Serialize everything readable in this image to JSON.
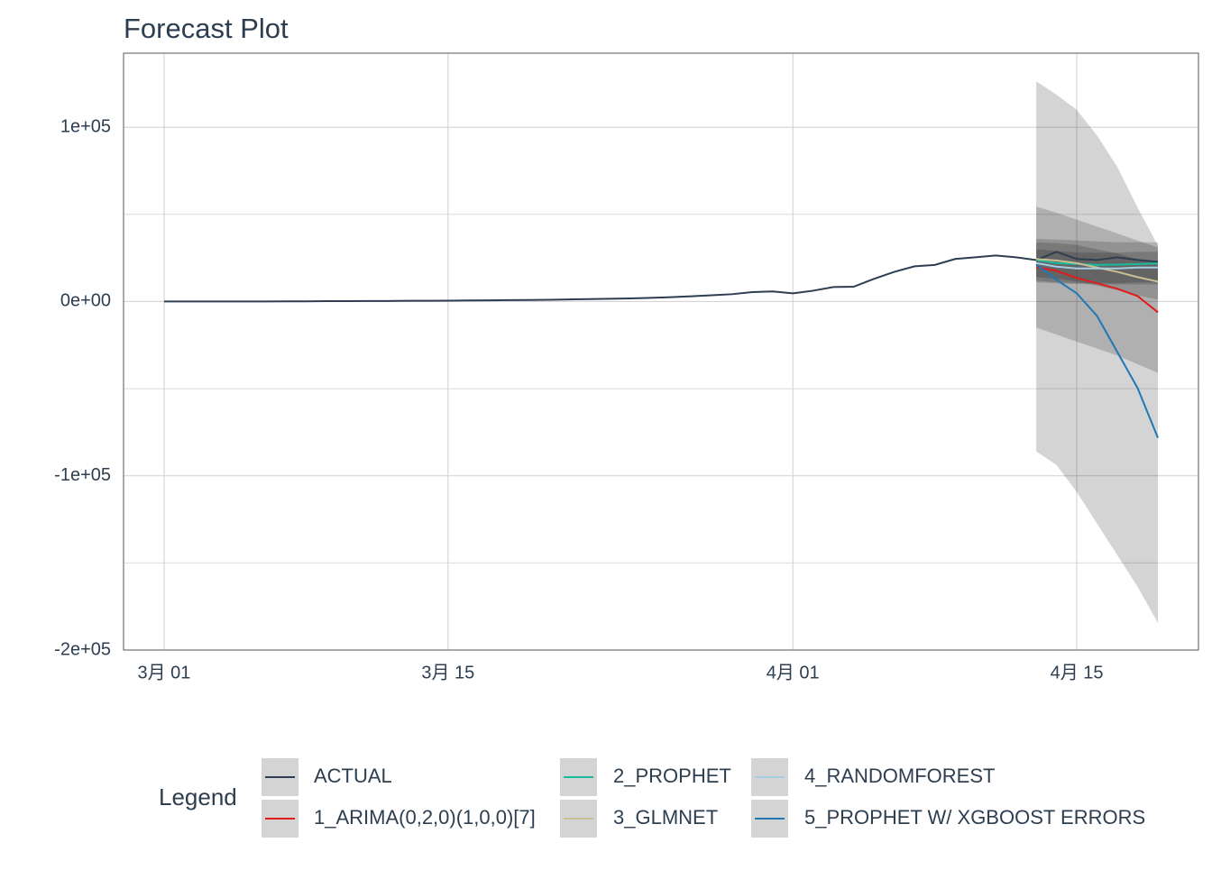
{
  "chart_data": {
    "type": "line",
    "title": "Forecast Plot",
    "legend_title": "Legend",
    "x": [
      "03-01",
      "03-02",
      "03-03",
      "03-04",
      "03-05",
      "03-06",
      "03-07",
      "03-08",
      "03-09",
      "03-10",
      "03-11",
      "03-12",
      "03-13",
      "03-14",
      "03-15",
      "03-16",
      "03-17",
      "03-18",
      "03-19",
      "03-20",
      "03-21",
      "03-22",
      "03-23",
      "03-24",
      "03-25",
      "03-26",
      "03-27",
      "03-28",
      "03-29",
      "03-30",
      "03-31",
      "04-01",
      "04-02",
      "04-03",
      "04-04",
      "04-05",
      "04-06",
      "04-07",
      "04-08",
      "04-09",
      "04-10",
      "04-11",
      "04-12",
      "04-13",
      "04-14",
      "04-15",
      "04-16",
      "04-17",
      "04-18",
      "04-19"
    ],
    "xlim": [
      "02-27",
      "04-21"
    ],
    "xticks": [
      {
        "value": "03-01",
        "label": "3月 01"
      },
      {
        "value": "03-15",
        "label": "3月 15"
      },
      {
        "value": "04-01",
        "label": "4月 01"
      },
      {
        "value": "04-15",
        "label": "4月 15"
      }
    ],
    "ylim": [
      -200000,
      142500
    ],
    "yticks": [
      {
        "value": -200000,
        "label": "-2e+05"
      },
      {
        "value": -100000,
        "label": "-1e+05"
      },
      {
        "value": 0,
        "label": "0e+00"
      },
      {
        "value": 100000,
        "label": "1e+05"
      }
    ],
    "yminorticks": [
      -150000,
      -50000,
      50000
    ],
    "grid": true,
    "series": [
      {
        "name": "ACTUAL",
        "color": "#2c3e50",
        "values": [
          0,
          0,
          0,
          0,
          0,
          0,
          100,
          100,
          200,
          200,
          300,
          300,
          400,
          400,
          500,
          600,
          700,
          800,
          900,
          1000,
          1200,
          1400,
          1600,
          1800,
          2100,
          2500,
          3000,
          3600,
          4200,
          5400,
          5800,
          4700,
          6200,
          8300,
          8500,
          13000,
          17000,
          20200,
          21000,
          24400,
          25400,
          26400,
          25400,
          23800,
          28500,
          24400,
          23800,
          25400,
          23800,
          22800
        ]
      },
      {
        "name": "1_ARIMA(0,2,0)(1,0,0)[7]",
        "color": "#e31a1c",
        "x": [
          "04-13",
          "04-14",
          "04-15",
          "04-16",
          "04-17",
          "04-18",
          "04-19"
        ],
        "values": [
          19700,
          17600,
          13500,
          10400,
          7300,
          3100,
          -6200
        ],
        "lower": [
          -15000,
          -19000,
          -23000,
          -27000,
          -31000,
          -36000,
          -41000
        ],
        "upper": [
          54400,
          51000,
          47000,
          43000,
          39000,
          35000,
          31000
        ]
      },
      {
        "name": "2_PROPHET",
        "color": "#18bc9c",
        "x": [
          "04-13",
          "04-14",
          "04-15",
          "04-16",
          "04-17",
          "04-18",
          "04-19"
        ],
        "values": [
          23800,
          22000,
          21500,
          21000,
          21200,
          21500,
          21800
        ],
        "lower": [
          11000,
          10500,
          10000,
          9800,
          9800,
          9800,
          9800
        ],
        "upper": [
          36000,
          35500,
          35000,
          34500,
          34000,
          34000,
          34000
        ]
      },
      {
        "name": "3_GLMNET",
        "color": "#ccbe93",
        "x": [
          "04-13",
          "04-14",
          "04-15",
          "04-16",
          "04-17",
          "04-18",
          "04-19"
        ],
        "values": [
          24400,
          23500,
          22000,
          19500,
          17000,
          14000,
          11400
        ],
        "lower": [
          14000,
          13000,
          11500,
          9000,
          6500,
          3500,
          1000
        ],
        "upper": [
          34000,
          33500,
          32500,
          30000,
          27500,
          24500,
          22000
        ]
      },
      {
        "name": "4_RANDOMFOREST",
        "color": "#a6cee3",
        "x": [
          "04-13",
          "04-14",
          "04-15",
          "04-16",
          "04-17",
          "04-18",
          "04-19"
        ],
        "values": [
          22000,
          20000,
          19000,
          19000,
          19000,
          19500,
          19500
        ],
        "lower": [
          12000,
          11000,
          10500,
          10500,
          10500,
          11000,
          11000
        ],
        "upper": [
          30000,
          29000,
          28000,
          28000,
          28000,
          28500,
          28500
        ]
      },
      {
        "name": "5_PROPHET W/ XGBOOST ERRORS",
        "color": "#1f78b4",
        "x": [
          "04-13",
          "04-14",
          "04-15",
          "04-16",
          "04-17",
          "04-18",
          "04-19"
        ],
        "values": [
          21200,
          12400,
          4700,
          -8300,
          -29000,
          -49700,
          -78200
        ],
        "lower": [
          -86000,
          -93800,
          -109300,
          -127500,
          -145600,
          -163700,
          -184500
        ],
        "upper": [
          126400,
          118700,
          110000,
          95300,
          77200,
          53900,
          32100
        ]
      }
    ]
  }
}
